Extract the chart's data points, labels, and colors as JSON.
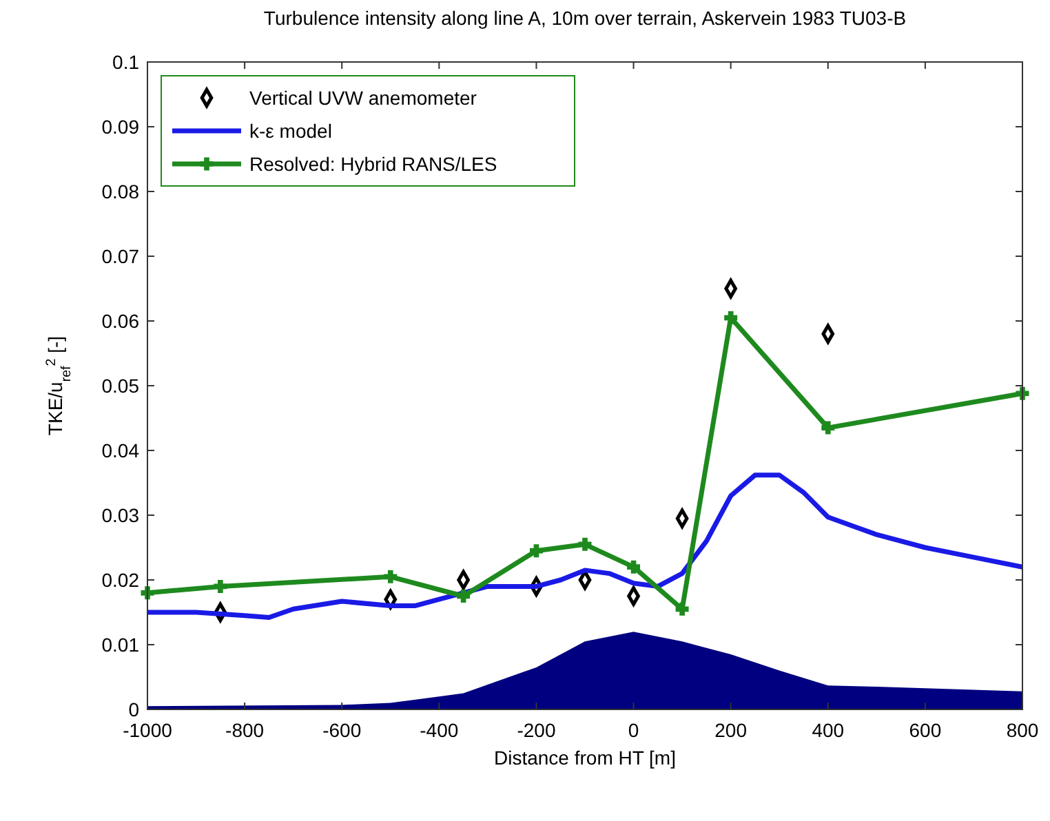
{
  "chart_data": {
    "type": "line",
    "title": "Turbulence intensity along line A, 10m over terrain, Askervein 1983 TU03-B",
    "xlabel": "Distance from HT [m]",
    "ylabel": "TKE/u$_{ref}$$^{2}$ [-]",
    "xlim": [
      -1000,
      800
    ],
    "xticks": [
      -1000,
      -800,
      -600,
      -400,
      -200,
      0,
      200,
      400,
      600,
      800
    ],
    "ylim": [
      0,
      0.1
    ],
    "yticks": [
      0,
      0.01,
      0.02,
      0.03,
      0.04,
      0.05,
      0.06,
      0.07,
      0.08,
      0.09,
      0.1
    ],
    "grid": false,
    "legend": "top left",
    "line_style": "solid",
    "series": [
      {
        "type": "area",
        "color": "#000080",
        "x": [
          -1000,
          -600,
          -500,
          -400,
          -350,
          -200,
          -100,
          0,
          100,
          200,
          300,
          400,
          500,
          800
        ],
        "values": [
          0.0005,
          0.0007,
          0.001,
          0.002,
          0.0025,
          0.0065,
          0.0105,
          0.012,
          0.0105,
          0.0085,
          0.006,
          0.0037,
          0.0035,
          0.0028
        ]
      },
      {
        "type": "scatter",
        "name": "Vertical UVW anemometer",
        "color": "#000000",
        "marker": "diamond",
        "x": [
          -850,
          -500,
          -350,
          -200,
          -100,
          0,
          100,
          200,
          400
        ],
        "values": [
          0.015,
          0.017,
          0.02,
          0.019,
          0.02,
          0.0175,
          0.0295,
          0.065,
          0.058
        ]
      },
      {
        "name": "k-ε model",
        "color": "#1a1ae6",
        "marker": "none",
        "x": [
          -1000,
          -900,
          -800,
          -750,
          -700,
          -600,
          -500,
          -450,
          -400,
          -300,
          -200,
          -150,
          -100,
          -50,
          0,
          50,
          100,
          150,
          200,
          250,
          300,
          350,
          400,
          500,
          600,
          700,
          800
        ],
        "values": [
          0.015,
          0.015,
          0.0145,
          0.0142,
          0.0155,
          0.0167,
          0.016,
          0.016,
          0.017,
          0.019,
          0.019,
          0.02,
          0.0215,
          0.021,
          0.0195,
          0.019,
          0.021,
          0.026,
          0.033,
          0.0362,
          0.0362,
          0.0335,
          0.0297,
          0.027,
          0.025,
          0.0235,
          0.022
        ]
      },
      {
        "name": "Resolved: Hybrid RANS/LES",
        "color": "#1e8a1e",
        "marker": "cross",
        "x": [
          -1000,
          -850,
          -500,
          -350,
          -200,
          -100,
          0,
          100,
          200,
          400,
          800
        ],
        "values": [
          0.018,
          0.019,
          0.0205,
          0.0175,
          0.0245,
          0.0255,
          0.022,
          0.0155,
          0.0605,
          0.0435,
          0.0488
        ]
      }
    ]
  }
}
